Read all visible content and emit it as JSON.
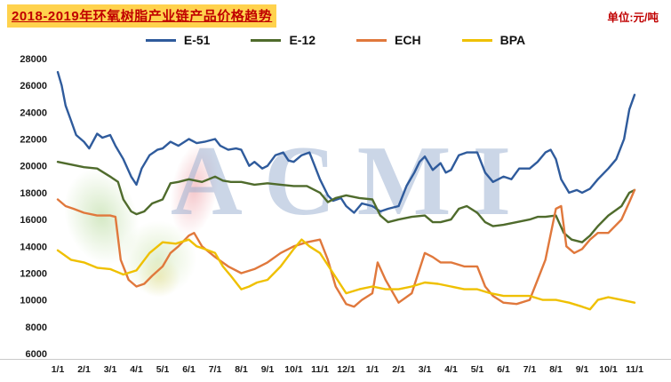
{
  "header": {
    "title": "2018-2019年环氧树脂产业链产品价格趋势",
    "unit_label": "单位:元/吨"
  },
  "watermark": {
    "text": "ACMI"
  },
  "colors": {
    "title_text": "#c00000",
    "title_highlight": "#ffd24d",
    "watermark": "#97aed0",
    "axis_text": "#1a1a1a"
  },
  "chart_data": {
    "type": "line",
    "title": "2018-2019年环氧树脂产业链产品价格趋势",
    "unit": "元/吨",
    "legend_position": "top",
    "grid": false,
    "ylim": [
      6000,
      28000
    ],
    "y_ticks": [
      6000,
      8000,
      10000,
      12000,
      14000,
      16000,
      18000,
      20000,
      22000,
      24000,
      26000,
      28000
    ],
    "x_tick_labels": [
      "1/1",
      "2/1",
      "3/1",
      "4/1",
      "5/1",
      "6/1",
      "7/1",
      "8/1",
      "9/1",
      "10/1",
      "11/1",
      "12/1",
      "1/1",
      "2/1",
      "3/1",
      "4/1",
      "5/1",
      "6/1",
      "7/1",
      "8/1",
      "9/1",
      "10/1",
      "11/1"
    ],
    "x_unit": "month (2018-01 through 2019-11)",
    "series": [
      {
        "name": "E-51",
        "color": "#2f5b9c",
        "x": [
          0,
          0.15,
          0.3,
          0.5,
          0.7,
          1,
          1.2,
          1.5,
          1.7,
          2,
          2.2,
          2.5,
          2.8,
          3,
          3.2,
          3.5,
          3.8,
          4,
          4.3,
          4.6,
          5,
          5.3,
          5.6,
          6,
          6.2,
          6.5,
          6.8,
          7,
          7.3,
          7.5,
          7.8,
          8,
          8.3,
          8.6,
          8.8,
          9,
          9.3,
          9.6,
          9.8,
          10,
          10.3,
          10.5,
          10.8,
          11,
          11.3,
          11.6,
          12,
          12.3,
          12.6,
          13,
          13.3,
          13.6,
          13.8,
          14,
          14.3,
          14.6,
          14.8,
          15,
          15.3,
          15.6,
          16,
          16.3,
          16.6,
          17,
          17.3,
          17.6,
          18,
          18.3,
          18.6,
          18.8,
          19,
          19.2,
          19.5,
          19.8,
          20,
          20.3,
          20.6,
          21,
          21.3,
          21.6,
          21.8,
          22
        ],
        "values": [
          27000,
          26000,
          24500,
          23400,
          22300,
          21800,
          21300,
          22400,
          22100,
          22300,
          21500,
          20500,
          19200,
          18600,
          19800,
          20800,
          21200,
          21300,
          21800,
          21500,
          22000,
          21700,
          21800,
          22000,
          21500,
          21200,
          21300,
          21200,
          20000,
          20300,
          19800,
          20000,
          20800,
          21000,
          20400,
          20300,
          20800,
          21000,
          20000,
          19000,
          17800,
          17400,
          17600,
          17000,
          16500,
          17200,
          17000,
          16600,
          16800,
          17000,
          18500,
          19500,
          20300,
          20700,
          19700,
          20200,
          19500,
          19700,
          20800,
          21000,
          21000,
          19500,
          18800,
          19200,
          19000,
          19800,
          19800,
          20300,
          21000,
          21200,
          20500,
          19000,
          18000,
          18200,
          18000,
          18300,
          19000,
          19800,
          20500,
          22000,
          24200,
          25300
        ]
      },
      {
        "name": "E-12",
        "color": "#4f6b2c",
        "x": [
          0,
          0.5,
          1,
          1.5,
          2,
          2.3,
          2.5,
          2.8,
          3,
          3.3,
          3.6,
          4,
          4.3,
          4.6,
          5,
          5.5,
          6,
          6.3,
          6.6,
          7,
          7.5,
          8,
          8.5,
          9,
          9.5,
          10,
          10.3,
          10.6,
          11,
          11.5,
          12,
          12.3,
          12.6,
          13,
          13.5,
          14,
          14.3,
          14.6,
          15,
          15.3,
          15.6,
          16,
          16.3,
          16.6,
          17,
          17.5,
          18,
          18.3,
          18.6,
          19,
          19.3,
          19.6,
          20,
          20.3,
          20.6,
          21,
          21.5,
          21.8,
          22
        ],
        "values": [
          20300,
          20100,
          19900,
          19800,
          19200,
          18800,
          17500,
          16600,
          16400,
          16600,
          17200,
          17500,
          18700,
          18800,
          19000,
          18800,
          19200,
          18900,
          18800,
          18800,
          18600,
          18700,
          18600,
          18500,
          18500,
          18000,
          17300,
          17600,
          17800,
          17600,
          17500,
          16300,
          15800,
          16000,
          16200,
          16300,
          15800,
          15800,
          16000,
          16800,
          17000,
          16500,
          15800,
          15500,
          15600,
          15800,
          16000,
          16200,
          16200,
          16300,
          15000,
          14500,
          14300,
          14800,
          15500,
          16300,
          17000,
          18000,
          18200
        ]
      },
      {
        "name": "ECH",
        "color": "#e0783c",
        "x": [
          0,
          0.3,
          0.6,
          1,
          1.5,
          2,
          2.2,
          2.4,
          2.7,
          3,
          3.3,
          3.6,
          4,
          4.3,
          4.6,
          5,
          5.2,
          5.5,
          6,
          6.5,
          7,
          7.5,
          8,
          8.5,
          9,
          9.5,
          10,
          10.3,
          10.6,
          11,
          11.3,
          11.6,
          12,
          12.2,
          12.5,
          13,
          13.5,
          14,
          14.3,
          14.6,
          15,
          15.5,
          16,
          16.3,
          16.6,
          17,
          17.5,
          18,
          18.3,
          18.6,
          19,
          19.2,
          19.4,
          19.7,
          20,
          20.3,
          20.6,
          21,
          21.5,
          21.8,
          22
        ],
        "values": [
          17500,
          17000,
          16800,
          16500,
          16300,
          16300,
          16200,
          13000,
          11500,
          11000,
          11200,
          11800,
          12500,
          13500,
          14000,
          14800,
          15000,
          14000,
          13200,
          12500,
          12000,
          12300,
          12800,
          13500,
          14000,
          14300,
          14500,
          13000,
          11000,
          9700,
          9500,
          10000,
          10500,
          12800,
          11500,
          9800,
          10500,
          13500,
          13200,
          12800,
          12800,
          12500,
          12500,
          11000,
          10300,
          9800,
          9700,
          10000,
          11500,
          13000,
          16800,
          17000,
          14000,
          13500,
          13800,
          14500,
          15000,
          15000,
          16000,
          17300,
          18200
        ]
      },
      {
        "name": "BPA",
        "color": "#efc000",
        "x": [
          0,
          0.5,
          1,
          1.5,
          2,
          2.5,
          3,
          3.5,
          4,
          4.5,
          5,
          5.3,
          5.6,
          6,
          6.3,
          6.6,
          7,
          7.3,
          7.6,
          8,
          8.5,
          9,
          9.3,
          9.6,
          10,
          10.5,
          11,
          11.5,
          12,
          12.5,
          13,
          13.5,
          14,
          14.5,
          15,
          15.5,
          16,
          16.5,
          17,
          17.5,
          18,
          18.5,
          19,
          19.5,
          20,
          20.3,
          20.6,
          21,
          21.5,
          22
        ],
        "values": [
          13700,
          13000,
          12800,
          12400,
          12300,
          11900,
          12200,
          13500,
          14300,
          14200,
          14500,
          14000,
          13800,
          13500,
          12500,
          11800,
          10800,
          11000,
          11300,
          11500,
          12500,
          13800,
          14500,
          14000,
          13500,
          12000,
          10500,
          10800,
          11000,
          10800,
          10800,
          11000,
          11300,
          11200,
          11000,
          10800,
          10800,
          10500,
          10300,
          10300,
          10300,
          10000,
          10000,
          9800,
          9500,
          9300,
          10000,
          10200,
          10000,
          9800
        ]
      }
    ]
  }
}
